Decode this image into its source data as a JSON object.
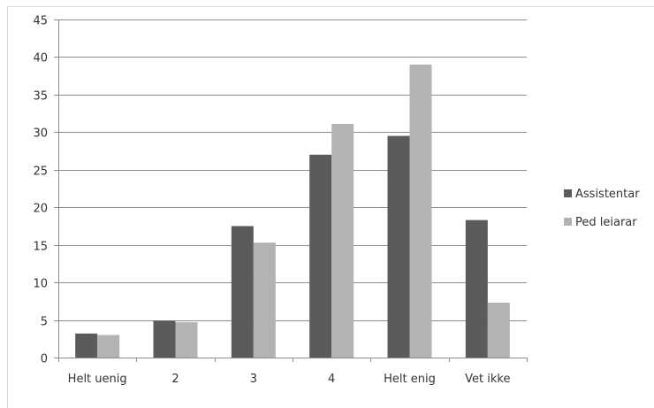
{
  "chart_data": {
    "type": "bar",
    "categories": [
      "Helt uenig",
      "2",
      "3",
      "4",
      "Helt enig",
      "Vet ikke"
    ],
    "series": [
      {
        "name": "Assistentar",
        "color": "#5b5b5b",
        "values": [
          3.2,
          4.9,
          17.5,
          27,
          29.5,
          18.3
        ]
      },
      {
        "name": "Ped leiarar",
        "color": "#b3b3b3",
        "values": [
          3,
          4.7,
          15.3,
          31.1,
          39,
          7.3
        ]
      }
    ],
    "ylim": [
      0,
      45
    ],
    "yticks": [
      0,
      5,
      10,
      15,
      20,
      25,
      30,
      35,
      40,
      45
    ],
    "grid": true,
    "legend": "right",
    "title": "",
    "xlabel": "",
    "ylabel": ""
  }
}
